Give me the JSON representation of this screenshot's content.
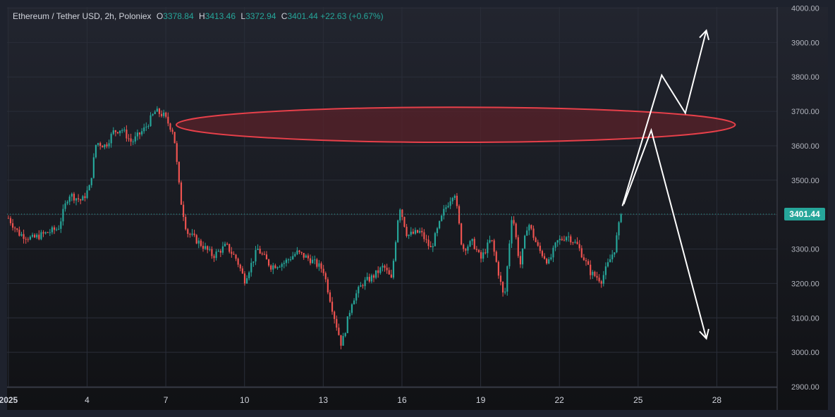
{
  "legend": {
    "symbol": "Ethereum / Tether USD, 2h, Poloniex",
    "open_label": "O",
    "open": "3378.84",
    "high_label": "H",
    "high": "3413.46",
    "low_label": "L",
    "low": "3372.94",
    "close_label": "C",
    "close": "3401.44",
    "change": "+22.63 (+0.67%)"
  },
  "colors": {
    "up": "#26a69a",
    "down": "#ef5350",
    "zone_fill": "#5a2229",
    "zone_stroke": "#e8404a",
    "projection": "#ffffff"
  },
  "chart_data": {
    "type": "candlestick",
    "interval": "2h",
    "x_ticks": [
      {
        "day": 1,
        "label": "2025"
      },
      {
        "day": 4,
        "label": "4"
      },
      {
        "day": 7,
        "label": "7"
      },
      {
        "day": 10,
        "label": "10"
      },
      {
        "day": 13,
        "label": "13"
      },
      {
        "day": 16,
        "label": "16"
      },
      {
        "day": 19,
        "label": "19"
      },
      {
        "day": 22,
        "label": "22"
      },
      {
        "day": 25,
        "label": "25"
      },
      {
        "day": 28,
        "label": "28"
      }
    ],
    "xlim": [
      0.95,
      30.3
    ],
    "ylim": [
      2898,
      4003
    ],
    "y_ticks": [
      "2900.00",
      "3000.00",
      "3100.00",
      "3200.00",
      "3300.00",
      "3400.00",
      "3500.00",
      "3600.00",
      "3700.00",
      "3800.00",
      "3900.00",
      "4000.00"
    ],
    "last_price": "3401.44",
    "price_path": [
      [
        1.0,
        3390
      ],
      [
        1.4,
        3345
      ],
      [
        1.9,
        3330
      ],
      [
        2.4,
        3345
      ],
      [
        2.9,
        3360
      ],
      [
        3.3,
        3460
      ],
      [
        3.8,
        3440
      ],
      [
        4.1,
        3480
      ],
      [
        4.35,
        3610
      ],
      [
        4.7,
        3600
      ],
      [
        5.0,
        3640
      ],
      [
        5.3,
        3650
      ],
      [
        5.7,
        3610
      ],
      [
        6.2,
        3650
      ],
      [
        6.6,
        3700
      ],
      [
        6.9,
        3690
      ],
      [
        7.3,
        3640
      ],
      [
        7.55,
        3450
      ],
      [
        7.8,
        3350
      ],
      [
        8.4,
        3310
      ],
      [
        8.8,
        3280
      ],
      [
        9.3,
        3310
      ],
      [
        9.7,
        3270
      ],
      [
        10.0,
        3210
      ],
      [
        10.5,
        3300
      ],
      [
        11.0,
        3250
      ],
      [
        11.5,
        3260
      ],
      [
        12.0,
        3290
      ],
      [
        12.5,
        3270
      ],
      [
        13.0,
        3240
      ],
      [
        13.4,
        3110
      ],
      [
        13.7,
        3020
      ],
      [
        14.1,
        3150
      ],
      [
        14.5,
        3200
      ],
      [
        14.9,
        3220
      ],
      [
        15.3,
        3250
      ],
      [
        15.6,
        3210
      ],
      [
        15.9,
        3430
      ],
      [
        16.2,
        3340
      ],
      [
        16.7,
        3350
      ],
      [
        17.1,
        3300
      ],
      [
        17.6,
        3410
      ],
      [
        18.0,
        3470
      ],
      [
        18.3,
        3300
      ],
      [
        18.7,
        3320
      ],
      [
        19.0,
        3270
      ],
      [
        19.4,
        3330
      ],
      [
        19.6,
        3260
      ],
      [
        19.9,
        3150
      ],
      [
        20.2,
        3410
      ],
      [
        20.5,
        3250
      ],
      [
        20.8,
        3380
      ],
      [
        21.2,
        3300
      ],
      [
        21.6,
        3260
      ],
      [
        21.9,
        3320
      ],
      [
        22.3,
        3340
      ],
      [
        22.7,
        3310
      ],
      [
        23.2,
        3230
      ],
      [
        23.6,
        3210
      ],
      [
        24.1,
        3300
      ],
      [
        24.35,
        3401.44
      ]
    ],
    "resistance_zone": {
      "day_start": 7.4,
      "day_end": 28.7,
      "price_low": 3610,
      "price_high": 3712
    },
    "projection_up": [
      [
        24.4,
        3425
      ],
      [
        25.9,
        3805
      ],
      [
        26.8,
        3695
      ],
      [
        27.6,
        3935
      ]
    ],
    "projection_down": [
      [
        24.45,
        3430
      ],
      [
        25.5,
        3645
      ],
      [
        27.6,
        3040
      ]
    ]
  }
}
